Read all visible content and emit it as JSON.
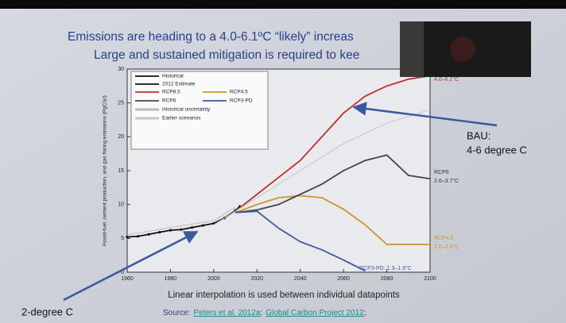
{
  "chart_data": {
    "type": "line",
    "title": "Emissions are heading to a 4.0-6.1ºC “likely” increas",
    "subtitle": "Large and sustained mitigation is required to kee",
    "y_label": "Fossil-fuel, cement production, and gas flaring emissions (PgC/yr)",
    "xlim": [
      1960,
      2100
    ],
    "xticks": [
      1960,
      1980,
      2000,
      2020,
      2040,
      2060,
      2080,
      2100
    ],
    "ylim": [
      0,
      30
    ],
    "yticks": [
      0,
      5,
      10,
      15,
      20,
      25,
      30
    ],
    "grid": false,
    "series": [
      {
        "name": "Historical",
        "color": "#111111",
        "x": [
          1960,
          1965,
          1970,
          1975,
          1980,
          1985,
          1990,
          1995,
          2000,
          2005,
          2010
        ],
        "values": [
          5.2,
          5.3,
          5.6,
          5.9,
          6.2,
          6.3,
          6.6,
          6.9,
          7.2,
          8.0,
          9.1
        ]
      },
      {
        "name": "2012 Estimate",
        "color": "#111111",
        "x": [
          2010,
          2012
        ],
        "values": [
          9.1,
          9.7
        ]
      },
      {
        "name": "RCP8.5",
        "color": "#c0302c",
        "x": [
          2010,
          2020,
          2030,
          2040,
          2050,
          2060,
          2070,
          2080,
          2090,
          2100
        ],
        "values": [
          9,
          11.5,
          14,
          16.5,
          20,
          23.5,
          26,
          27.5,
          28.5,
          29
        ]
      },
      {
        "name": "RCP4.5",
        "color": "#c8962a",
        "x": [
          2010,
          2020,
          2030,
          2040,
          2050,
          2060,
          2070,
          2080,
          2090,
          2100
        ],
        "values": [
          8.8,
          10,
          11,
          11.3,
          11,
          9.3,
          7,
          4.1,
          4.1,
          4.1
        ]
      },
      {
        "name": "RCP6",
        "color": "#444444",
        "x": [
          2010,
          2020,
          2030,
          2040,
          2050,
          2060,
          2070,
          2080,
          2090,
          2100
        ],
        "values": [
          8.8,
          9.2,
          10,
          11.5,
          13,
          15,
          16.5,
          17.3,
          14.3,
          13.8
        ]
      },
      {
        "name": "RCP3-PD",
        "color": "#3a5a9a",
        "x": [
          2010,
          2020,
          2030,
          2040,
          2050,
          2060,
          2070
        ],
        "values": [
          8.8,
          9,
          6.5,
          4.5,
          3.3,
          1.8,
          0.2
        ]
      },
      {
        "name": "Historical uncertainty",
        "color": "#bbbbbb",
        "x": [
          1960,
          1980,
          2000,
          2010
        ],
        "values": [
          5.5,
          6.6,
          7.6,
          9.6
        ]
      },
      {
        "name": "Earlier scenarios",
        "color": "#c4c4c4",
        "x": [
          2000,
          2020,
          2040,
          2060,
          2080,
          2100
        ],
        "values": [
          7,
          11,
          15,
          19,
          22,
          24
        ]
      }
    ],
    "annotations": [
      "4.0–6.1°C",
      "RCP6",
      "2.6–3.7°C",
      "RCP4.5",
      "2.0–3.0°C",
      "RCP3-PD: 1.3–1.9°C"
    ],
    "callouts": [
      "BAU:",
      "4-6 degree C",
      "2-degree C"
    ],
    "footer": {
      "note": "Linear interpolation is used between individual datapoints",
      "source": "Source:",
      "link1": "Peters et al. 2012a",
      "sep": ";",
      "link2": "Global Carbon Project 2012",
      "end": ";"
    }
  }
}
